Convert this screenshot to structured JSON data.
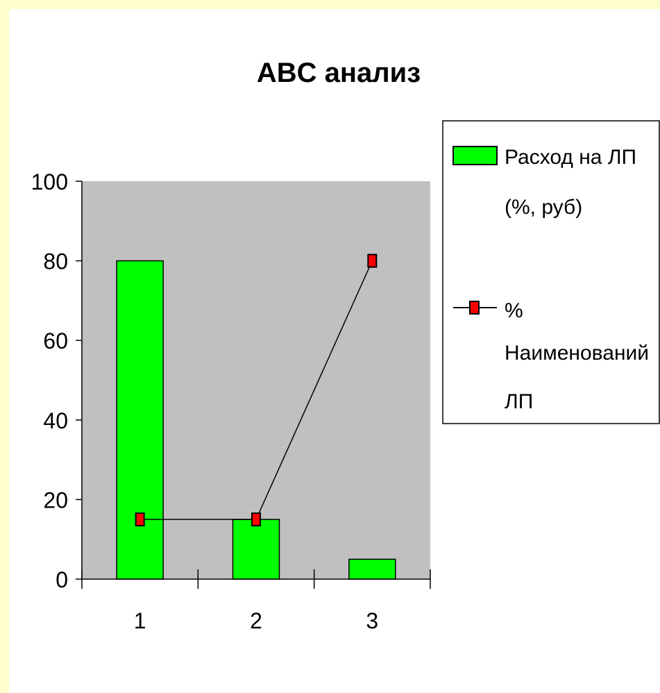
{
  "chart_data": {
    "type": "bar",
    "title": "ABC анализ",
    "xlabel": "",
    "ylabel": "",
    "categories": [
      "1",
      "2",
      "3"
    ],
    "ylim": [
      0,
      100
    ],
    "yticks": [
      0,
      20,
      40,
      60,
      80,
      100
    ],
    "grid": false,
    "legend_position": "right",
    "series": [
      {
        "name": "Расход на ЛП (%, руб)",
        "kind": "bar",
        "color": "#00ff00",
        "values": [
          80,
          15,
          5
        ]
      },
      {
        "name": "% Наименований ЛП",
        "kind": "line",
        "marker": "square",
        "color": "#000000",
        "marker_color": "#ff0000",
        "values": [
          15,
          15,
          80
        ]
      }
    ],
    "legend": {
      "bar_label_lines": [
        "Расход на ЛП",
        "(%, руб)"
      ],
      "line_label_lines": [
        "%",
        "Наименований",
        "ЛП"
      ]
    },
    "colors": {
      "frame": "#ffffcc",
      "plot_area": "#c0c0c0",
      "bar": "#00ff00",
      "marker": "#ff0000"
    }
  }
}
